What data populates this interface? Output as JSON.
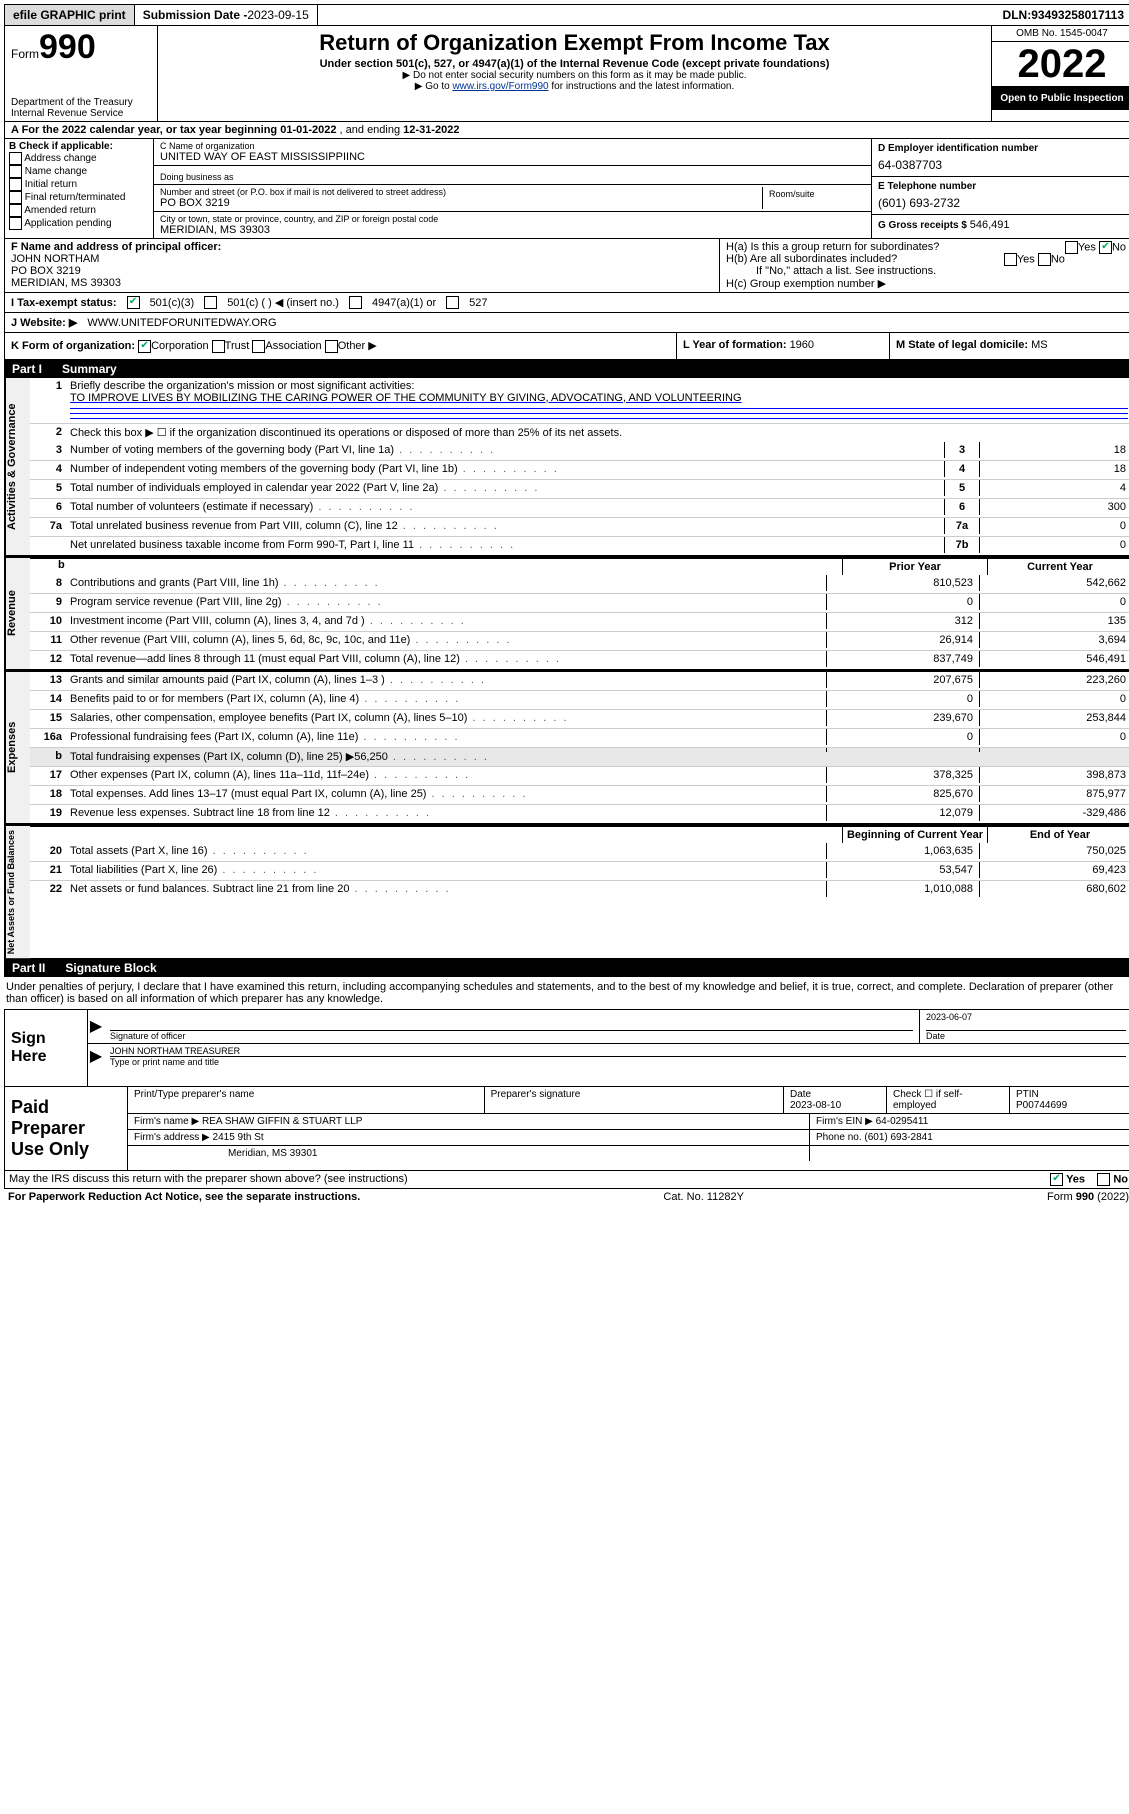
{
  "topbar": {
    "efile": "efile GRAPHIC print",
    "sub_date_label": "Submission Date - ",
    "sub_date": "2023-09-15",
    "dln_label": "DLN: ",
    "dln": "93493258017113"
  },
  "header": {
    "form_word": "Form",
    "form_num": "990",
    "dept": "Department of the Treasury\nInternal Revenue Service",
    "title": "Return of Organization Exempt From Income Tax",
    "subtitle": "Under section 501(c), 527, or 4947(a)(1) of the Internal Revenue Code (except private foundations)",
    "note1": "Do not enter social security numbers on this form as it may be made public.",
    "note2_pre": "Go to ",
    "note2_link": "www.irs.gov/Form990",
    "note2_post": " for instructions and the latest information.",
    "omb": "OMB No. 1545-0047",
    "year": "2022",
    "open": "Open to Public Inspection"
  },
  "rowA": {
    "prefix": "A For the 2022 calendar year, or tax year beginning ",
    "begin": "01-01-2022",
    "mid": "  , and ending ",
    "end": "12-31-2022"
  },
  "colB": {
    "title": "B Check if applicable:",
    "opts": [
      "Address change",
      "Name change",
      "Initial return",
      "Final return/terminated",
      "Amended return",
      "Application pending"
    ]
  },
  "colC": {
    "name_label": "C Name of organization",
    "name": "UNITED WAY OF EAST MISSISSIPPIINC",
    "dba_label": "Doing business as",
    "dba": "",
    "street_label": "Number and street (or P.O. box if mail is not delivered to street address)",
    "street": "PO BOX 3219",
    "room_label": "Room/suite",
    "city_label": "City or town, state or province, country, and ZIP or foreign postal code",
    "city": "MERIDIAN, MS  39303"
  },
  "colD": {
    "d_label": "D Employer identification number",
    "d_val": "64-0387703",
    "e_label": "E Telephone number",
    "e_val": "(601) 693-2732",
    "g_label": "G Gross receipts $ ",
    "g_val": "546,491"
  },
  "rowF": {
    "label": "F  Name and address of principal officer:",
    "name": "JOHN NORTHAM",
    "addr1": "PO BOX 3219",
    "addr2": "MERIDIAN, MS  39303"
  },
  "rowH": {
    "ha": "H(a)  Is this a group return for subordinates?",
    "ha_yes": "Yes",
    "ha_no": "No",
    "hb": "H(b)  Are all subordinates included?",
    "hb_yes": "Yes",
    "hb_no": "No",
    "hb_note": "If \"No,\" attach a list. See instructions.",
    "hc": "H(c)  Group exemption number ▶"
  },
  "rowI": {
    "label": "I   Tax-exempt status:",
    "o1": "501(c)(3)",
    "o2": "501(c) (  ) ◀ (insert no.)",
    "o3": "4947(a)(1) or",
    "o4": "527"
  },
  "rowJ": {
    "label": "J   Website: ▶ ",
    "val": "WWW.UNITEDFORUNITEDWAY.ORG"
  },
  "rowK": {
    "label": "K Form of organization:",
    "o1": "Corporation",
    "o2": "Trust",
    "o3": "Association",
    "o4": "Other ▶",
    "l_label": "L Year of formation: ",
    "l_val": "1960",
    "m_label": "M State of legal domicile: ",
    "m_val": "MS"
  },
  "part1": {
    "num": "Part I",
    "title": "Summary",
    "sections": {
      "gov": {
        "tab": "Activities & Governance",
        "l1_label": "Briefly describe the organization's mission or most significant activities:",
        "l1_val": "TO IMPROVE LIVES BY MOBILIZING THE CARING POWER OF THE COMMUNITY BY GIVING, ADVOCATING, AND VOLUNTEERING",
        "l2": "Check this box ▶ ☐  if the organization discontinued its operations or disposed of more than 25% of its net assets.",
        "rows": [
          {
            "n": "3",
            "t": "Number of voting members of the governing body (Part VI, line 1a)",
            "bn": "3",
            "v": "18"
          },
          {
            "n": "4",
            "t": "Number of independent voting members of the governing body (Part VI, line 1b)",
            "bn": "4",
            "v": "18"
          },
          {
            "n": "5",
            "t": "Total number of individuals employed in calendar year 2022 (Part V, line 2a)",
            "bn": "5",
            "v": "4"
          },
          {
            "n": "6",
            "t": "Total number of volunteers (estimate if necessary)",
            "bn": "6",
            "v": "300"
          },
          {
            "n": "7a",
            "t": "Total unrelated business revenue from Part VIII, column (C), line 12",
            "bn": "7a",
            "v": "0"
          },
          {
            "n": "",
            "t": "Net unrelated business taxable income from Form 990-T, Part I, line 11",
            "bn": "7b",
            "v": "0"
          }
        ]
      },
      "rev": {
        "tab": "Revenue",
        "hdr_prior": "Prior Year",
        "hdr_curr": "Current Year",
        "rows": [
          {
            "n": "8",
            "t": "Contributions and grants (Part VIII, line 1h)",
            "p": "810,523",
            "c": "542,662"
          },
          {
            "n": "9",
            "t": "Program service revenue (Part VIII, line 2g)",
            "p": "0",
            "c": "0"
          },
          {
            "n": "10",
            "t": "Investment income (Part VIII, column (A), lines 3, 4, and 7d )",
            "p": "312",
            "c": "135"
          },
          {
            "n": "11",
            "t": "Other revenue (Part VIII, column (A), lines 5, 6d, 8c, 9c, 10c, and 11e)",
            "p": "26,914",
            "c": "3,694"
          },
          {
            "n": "12",
            "t": "Total revenue—add lines 8 through 11 (must equal Part VIII, column (A), line 12)",
            "p": "837,749",
            "c": "546,491"
          }
        ]
      },
      "exp": {
        "tab": "Expenses",
        "rows": [
          {
            "n": "13",
            "t": "Grants and similar amounts paid (Part IX, column (A), lines 1–3 )",
            "p": "207,675",
            "c": "223,260"
          },
          {
            "n": "14",
            "t": "Benefits paid to or for members (Part IX, column (A), line 4)",
            "p": "0",
            "c": "0"
          },
          {
            "n": "15",
            "t": "Salaries, other compensation, employee benefits (Part IX, column (A), lines 5–10)",
            "p": "239,670",
            "c": "253,844"
          },
          {
            "n": "16a",
            "t": "Professional fundraising fees (Part IX, column (A), line 11e)",
            "p": "0",
            "c": "0"
          },
          {
            "n": "b",
            "t": "Total fundraising expenses (Part IX, column (D), line 25) ▶56,250",
            "p": "",
            "c": "",
            "shade": true
          },
          {
            "n": "17",
            "t": "Other expenses (Part IX, column (A), lines 11a–11d, 11f–24e)",
            "p": "378,325",
            "c": "398,873"
          },
          {
            "n": "18",
            "t": "Total expenses. Add lines 13–17 (must equal Part IX, column (A), line 25)",
            "p": "825,670",
            "c": "875,977"
          },
          {
            "n": "19",
            "t": "Revenue less expenses. Subtract line 18 from line 12",
            "p": "12,079",
            "c": "-329,486"
          }
        ]
      },
      "net": {
        "tab": "Net Assets or Fund Balances",
        "hdr_begin": "Beginning of Current Year",
        "hdr_end": "End of Year",
        "rows": [
          {
            "n": "20",
            "t": "Total assets (Part X, line 16)",
            "p": "1,063,635",
            "c": "750,025"
          },
          {
            "n": "21",
            "t": "Total liabilities (Part X, line 26)",
            "p": "53,547",
            "c": "69,423"
          },
          {
            "n": "22",
            "t": "Net assets or fund balances. Subtract line 21 from line 20",
            "p": "1,010,088",
            "c": "680,602"
          }
        ]
      }
    }
  },
  "part2": {
    "num": "Part II",
    "title": "Signature Block",
    "intro": "Under penalties of perjury, I declare that I have examined this return, including accompanying schedules and statements, and to the best of my knowledge and belief, it is true, correct, and complete. Declaration of preparer (other than officer) is based on all information of which preparer has any knowledge."
  },
  "sign": {
    "left": "Sign Here",
    "sig_label": "Signature of officer",
    "date_label": "Date",
    "date_val": "2023-06-07",
    "name_val": "JOHN NORTHAM TREASURER",
    "name_label": "Type or print name and title"
  },
  "prep": {
    "left": "Paid Preparer Use Only",
    "h_name": "Print/Type preparer's name",
    "h_sig": "Preparer's signature",
    "h_date": "Date",
    "date_val": "2023-08-10",
    "h_check": "Check ☐ if self-employed",
    "h_ptin": "PTIN",
    "ptin_val": "P00744699",
    "firm_name_lbl": "Firm's name    ▶ ",
    "firm_name": "REA SHAW GIFFIN & STUART LLP",
    "firm_ein_lbl": "Firm's EIN ▶ ",
    "firm_ein": "64-0295411",
    "firm_addr_lbl": "Firm's address ▶ ",
    "firm_addr1": "2415 9th St",
    "firm_addr2": "Meridian, MS  39301",
    "phone_lbl": "Phone no. ",
    "phone": "(601) 693-2841"
  },
  "footer": {
    "discuss": "May the IRS discuss this return with the preparer shown above? (see instructions)",
    "yes": "Yes",
    "no": "No",
    "pra": "For Paperwork Reduction Act Notice, see the separate instructions.",
    "cat": "Cat. No. 11282Y",
    "form": "Form 990 (2022)"
  }
}
